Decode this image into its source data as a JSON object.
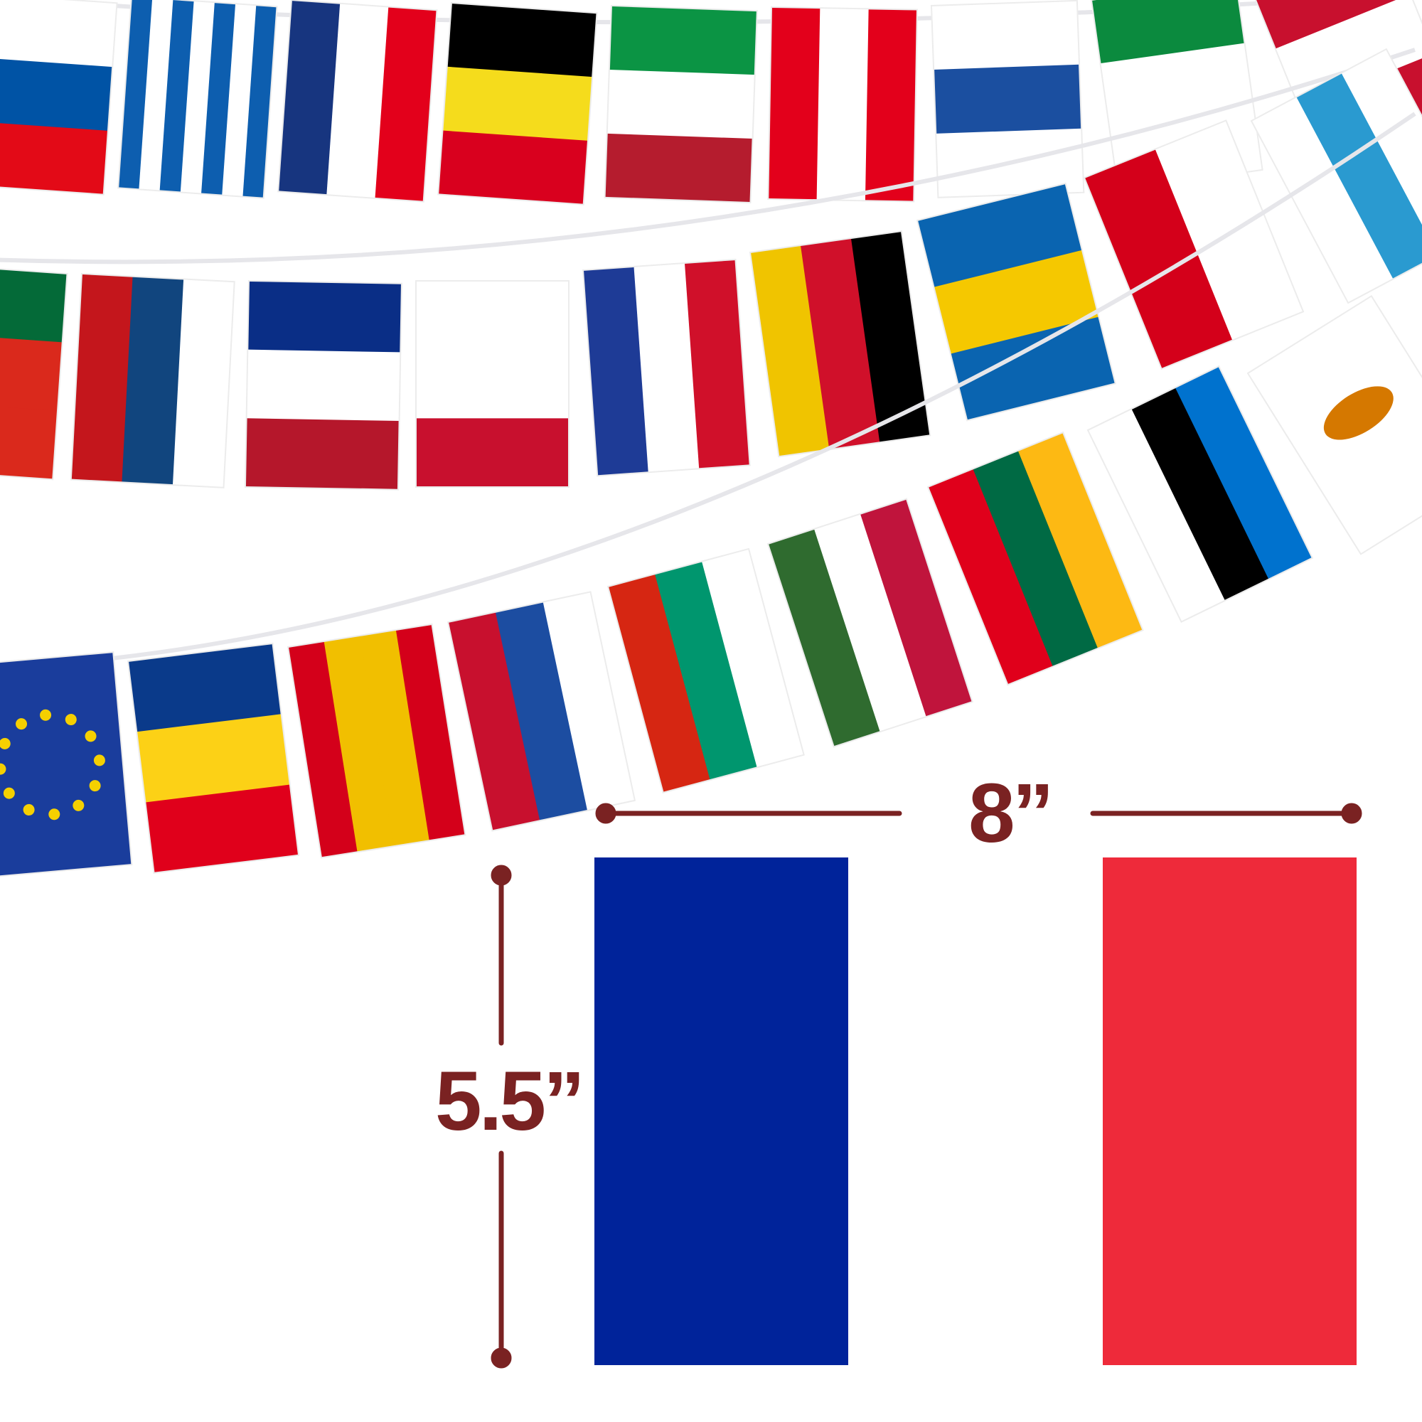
{
  "dimensions": {
    "width_label": "8”",
    "height_label": "5.5”",
    "line_color": "#7a2222"
  },
  "featured_flag": {
    "left_color": "#00239a",
    "right_color": "#ee2a3a"
  },
  "bunting_rows": [
    [
      {
        "icon": "slovenia-flag-icon",
        "dir": "h",
        "colors": [
          "#ffffff",
          "#0053a5",
          "#e30a17"
        ]
      },
      {
        "icon": "greece-flag-icon",
        "dir": "v",
        "colors": [
          "#0d5eaf",
          "#ffffff",
          "#0d5eaf",
          "#ffffff",
          "#0d5eaf",
          "#ffffff",
          "#0d5eaf"
        ]
      },
      {
        "icon": "croatia-flag-icon",
        "dir": "v",
        "colors": [
          "#17357f",
          "#ffffff",
          "#e3001b"
        ]
      },
      {
        "icon": "belgium-flag-icon",
        "dir": "h",
        "colors": [
          "#000000",
          "#f5dc1c",
          "#d9001e"
        ]
      },
      {
        "icon": "italy-flag-icon",
        "dir": "h",
        "colors": [
          "#0b9444",
          "#ffffff",
          "#b51c2e"
        ]
      },
      {
        "icon": "austria-flag-icon",
        "dir": "v",
        "colors": [
          "#e3001b",
          "#ffffff",
          "#e3001b"
        ]
      },
      {
        "icon": "finland-flag-icon",
        "dir": "h",
        "colors": [
          "#ffffff",
          "#1b4fa0",
          "#ffffff"
        ]
      },
      {
        "icon": "ireland-flag-icon",
        "dir": "h",
        "colors": [
          "#0b8a3e",
          "#ffffff",
          "#ffffff"
        ]
      },
      {
        "icon": "denmark-flag-icon",
        "dir": "h",
        "colors": [
          "#c8102e",
          "#ffffff",
          "#c8102e"
        ]
      }
    ],
    [
      {
        "icon": "portugal-flag-icon",
        "dir": "h",
        "colors": [
          "#046a38",
          "#da291c",
          "#da291c"
        ]
      },
      {
        "icon": "czechia-flag-icon",
        "dir": "v",
        "colors": [
          "#c4161c",
          "#11457e",
          "#ffffff"
        ]
      },
      {
        "icon": "france-flag-icon",
        "dir": "h",
        "colors": [
          "#0a2e86",
          "#ffffff",
          "#b5172b"
        ]
      },
      {
        "icon": "malta-flag-icon",
        "dir": "h",
        "colors": [
          "#ffffff",
          "#ffffff",
          "#c8102e"
        ]
      },
      {
        "icon": "netherlands-flag-icon",
        "dir": "v",
        "colors": [
          "#1e3b96",
          "#ffffff",
          "#d0102a"
        ]
      },
      {
        "icon": "germany-flag-icon",
        "dir": "v",
        "colors": [
          "#f0c400",
          "#d0102a",
          "#000000"
        ]
      },
      {
        "icon": "sweden-flag-icon",
        "dir": "h",
        "colors": [
          "#0a64b0",
          "#f5c800",
          "#0a64b0"
        ]
      },
      {
        "icon": "poland-flag-icon",
        "dir": "v",
        "colors": [
          "#d4001a",
          "#ffffff"
        ]
      },
      {
        "icon": "luxembourg-flag-icon",
        "dir": "v",
        "colors": [
          "#ffffff",
          "#2a9ad0",
          "#ffffff"
        ]
      }
    ],
    [
      {
        "icon": "eu-flag-icon",
        "dir": "h",
        "colors": [
          "#1a3d9c"
        ]
      },
      {
        "icon": "romania-flag-icon",
        "dir": "h",
        "colors": [
          "#0a3a8a",
          "#fcd116",
          "#e0001b"
        ]
      },
      {
        "icon": "spain-flag-icon",
        "dir": "v",
        "colors": [
          "#d4001a",
          "#f1bf00",
          "#f1bf00",
          "#d4001a"
        ]
      },
      {
        "icon": "slovakia-flag-icon",
        "dir": "v",
        "colors": [
          "#c8102e",
          "#1c4da1",
          "#ffffff"
        ]
      },
      {
        "icon": "bulgaria-flag-icon",
        "dir": "v",
        "colors": [
          "#d62612",
          "#00966e",
          "#ffffff"
        ]
      },
      {
        "icon": "hungary-flag-icon",
        "dir": "v",
        "colors": [
          "#2f6b2f",
          "#ffffff",
          "#c0143c"
        ]
      },
      {
        "icon": "lithuania-flag-icon",
        "dir": "v",
        "colors": [
          "#e0001b",
          "#006a44",
          "#fdb913"
        ]
      },
      {
        "icon": "estonia-flag-icon",
        "dir": "v",
        "colors": [
          "#ffffff",
          "#000000",
          "#0072ce"
        ]
      },
      {
        "icon": "cyprus-flag-icon",
        "dir": "h",
        "colors": [
          "#ffffff"
        ]
      }
    ]
  ]
}
